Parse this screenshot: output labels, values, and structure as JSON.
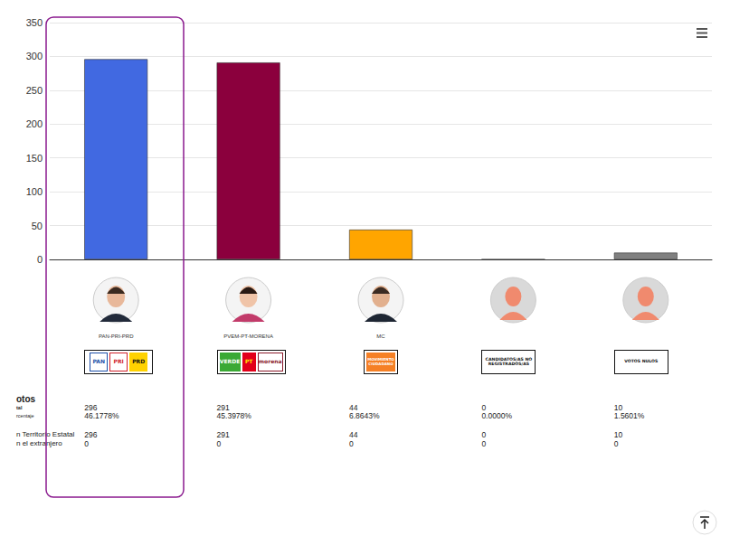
{
  "chart_data": {
    "type": "bar",
    "categories": [
      "PAN-PRI-PRD",
      "PVEM-PT-MORENA",
      "MC",
      null,
      null
    ],
    "values": [
      296,
      291,
      44,
      0,
      10
    ],
    "colors": [
      "#4169e1",
      "#8b003d",
      "#ffa500",
      "#808080",
      "#808080"
    ],
    "ylim": [
      0,
      350
    ],
    "yticks": [
      0,
      50,
      100,
      150,
      200,
      250,
      300,
      350
    ],
    "grid": true,
    "data_labels": false
  },
  "logos": [
    [
      {
        "text": "PAN",
        "color": "#ffffff",
        "text_color": "#1c4fa8"
      },
      {
        "text": "PRI",
        "color": "#ffffff",
        "text_color": "#d0202a"
      },
      {
        "text": "PRD",
        "color": "#ffd200",
        "text_color": "#111111"
      }
    ],
    [
      {
        "text": "VERDE",
        "color": "#3aa935",
        "text_color": "#ffffff"
      },
      {
        "text": "PT",
        "color": "#e2001a",
        "text_color": "#ffe600"
      },
      {
        "text": "morena",
        "color": "#ffffff",
        "text_color": "#8b1a2b"
      }
    ],
    [
      {
        "text": "MOVIMIENTO CIUDADANO",
        "color": "#f58025",
        "text_color": "#ffffff"
      }
    ],
    [
      {
        "text": "CANDIDATOS/AS NO REGISTRADOS/AS",
        "color": "#ffffff",
        "text_color": "#111111"
      }
    ],
    [
      {
        "text": "VOTOS NULOS",
        "color": "#ffffff",
        "text_color": "#111111"
      }
    ]
  ],
  "table": {
    "groups": [
      {
        "labels": [
          "otos",
          "tal",
          "rcentaje"
        ],
        "cells": [
          [
            "296",
            "46.1778%"
          ],
          [
            "291",
            "45.3978%"
          ],
          [
            "44",
            "6.8643%"
          ],
          [
            "0",
            "0.0000%"
          ],
          [
            "10",
            "1.5601%"
          ]
        ]
      },
      {
        "labels": [
          "n Territorio Estatal",
          "n el extranjero"
        ],
        "cells": [
          [
            "296",
            "0"
          ],
          [
            "291",
            "0"
          ],
          [
            "44",
            "0"
          ],
          [
            "0",
            "0"
          ],
          [
            "10",
            "0"
          ]
        ]
      }
    ]
  }
}
